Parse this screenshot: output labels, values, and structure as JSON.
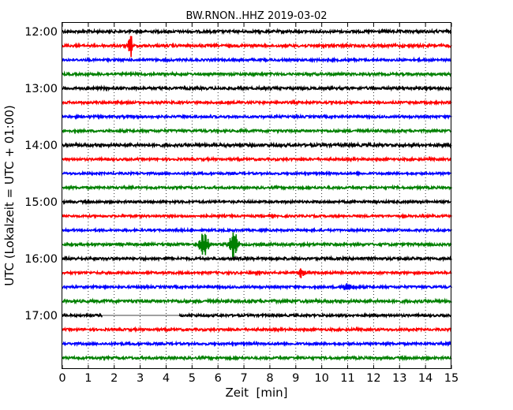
{
  "chart_data": {
    "type": "line",
    "title": "BW.RNON..HHZ 2019-03-02",
    "xlabel": "Zeit  [min]",
    "ylabel": "UTC (Lokalzeit = UTC + 01:00)",
    "xlim": [
      0,
      15
    ],
    "x_ticks": [
      "0",
      "1",
      "2",
      "3",
      "4",
      "5",
      "6",
      "7",
      "8",
      "9",
      "10",
      "11",
      "12",
      "13",
      "14",
      "15"
    ],
    "y_ticks": [
      "12:00",
      "13:00",
      "14:00",
      "15:00",
      "16:00",
      "17:00"
    ],
    "trace_interval_minutes": 15,
    "grid": "vertical dotted, every 1 min",
    "colors": [
      "#000000",
      "#ff0000",
      "#0000ff",
      "#008000"
    ],
    "series": [
      {
        "start": "12:00",
        "color_index": 0,
        "noise": 1.6,
        "events": []
      },
      {
        "start": "12:15",
        "color_index": 1,
        "noise": 1.6,
        "events": [
          {
            "t": 2.62,
            "amp": 20,
            "dur": 0.06
          }
        ]
      },
      {
        "start": "12:30",
        "color_index": 2,
        "noise": 1.4,
        "events": []
      },
      {
        "start": "12:45",
        "color_index": 3,
        "noise": 1.5,
        "events": []
      },
      {
        "start": "13:00",
        "color_index": 0,
        "noise": 1.6,
        "events": []
      },
      {
        "start": "13:15",
        "color_index": 1,
        "noise": 1.4,
        "events": []
      },
      {
        "start": "13:30",
        "color_index": 2,
        "noise": 1.4,
        "events": []
      },
      {
        "start": "13:45",
        "color_index": 3,
        "noise": 1.5,
        "events": []
      },
      {
        "start": "14:00",
        "color_index": 0,
        "noise": 1.8,
        "events": []
      },
      {
        "start": "14:15",
        "color_index": 1,
        "noise": 1.4,
        "events": []
      },
      {
        "start": "14:30",
        "color_index": 2,
        "noise": 1.3,
        "events": []
      },
      {
        "start": "14:45",
        "color_index": 3,
        "noise": 1.4,
        "events": []
      },
      {
        "start": "15:00",
        "color_index": 0,
        "noise": 1.4,
        "events": []
      },
      {
        "start": "15:15",
        "color_index": 1,
        "noise": 1.3,
        "events": []
      },
      {
        "start": "15:30",
        "color_index": 2,
        "noise": 1.3,
        "events": []
      },
      {
        "start": "15:45",
        "color_index": 3,
        "noise": 1.5,
        "events": [
          {
            "t": 5.45,
            "amp": 15,
            "dur": 0.18
          },
          {
            "t": 6.6,
            "amp": 17,
            "dur": 0.16
          }
        ]
      },
      {
        "start": "16:00",
        "color_index": 0,
        "noise": 1.6,
        "events": []
      },
      {
        "start": "16:15",
        "color_index": 1,
        "noise": 1.4,
        "events": [
          {
            "t": 9.2,
            "amp": 6,
            "dur": 0.12
          }
        ]
      },
      {
        "start": "16:30",
        "color_index": 2,
        "noise": 1.4,
        "events": [
          {
            "t": 11.0,
            "amp": 4,
            "dur": 0.25
          }
        ]
      },
      {
        "start": "16:45",
        "color_index": 3,
        "noise": 1.8,
        "events": []
      },
      {
        "start": "17:00",
        "color_index": 0,
        "noise": 1.4,
        "events": [],
        "gap": [
          1.55,
          4.5
        ]
      },
      {
        "start": "17:15",
        "color_index": 1,
        "noise": 1.4,
        "events": []
      },
      {
        "start": "17:30",
        "color_index": 2,
        "noise": 1.4,
        "events": []
      },
      {
        "start": "17:45",
        "color_index": 3,
        "noise": 1.5,
        "events": []
      }
    ]
  }
}
